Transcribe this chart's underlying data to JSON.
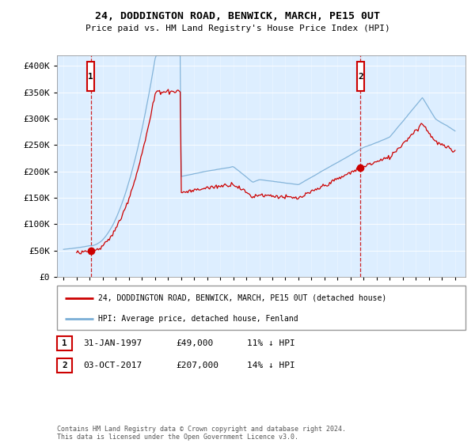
{
  "title": "24, DODDINGTON ROAD, BENWICK, MARCH, PE15 0UT",
  "subtitle": "Price paid vs. HM Land Registry's House Price Index (HPI)",
  "legend_line1": "24, DODDINGTON ROAD, BENWICK, MARCH, PE15 0UT (detached house)",
  "legend_line2": "HPI: Average price, detached house, Fenland",
  "footer": "Contains HM Land Registry data © Crown copyright and database right 2024.\nThis data is licensed under the Open Government Licence v3.0.",
  "table_rows": [
    {
      "num": "1",
      "date": "31-JAN-1997",
      "price": "£49,000",
      "hpi": "11% ↓ HPI"
    },
    {
      "num": "2",
      "date": "03-OCT-2017",
      "price": "£207,000",
      "hpi": "14% ↓ HPI"
    }
  ],
  "sale1_x": 1997.08,
  "sale1_price": 49000,
  "sale2_x": 2017.75,
  "sale2_price": 207000,
  "line_color_red": "#cc0000",
  "line_color_blue": "#7aaed6",
  "vline_color": "#cc0000",
  "plot_bg": "#ddeeff",
  "ytick_vals": [
    0,
    50000,
    100000,
    150000,
    200000,
    250000,
    300000,
    350000,
    400000
  ],
  "ytick_labels": [
    "£0",
    "£50K",
    "£100K",
    "£150K",
    "£200K",
    "£250K",
    "£300K",
    "£350K",
    "£400K"
  ],
  "xlim": [
    1994.5,
    2025.8
  ],
  "ylim": [
    0,
    420000
  ]
}
